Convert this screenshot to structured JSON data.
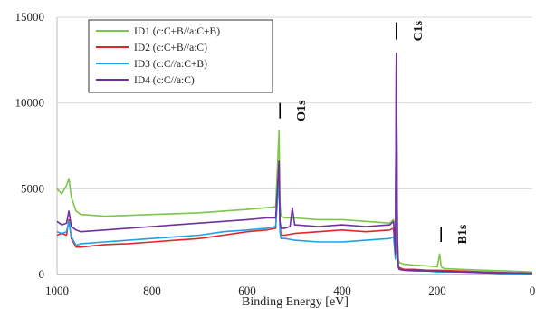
{
  "chart_data": {
    "type": "line",
    "title": "",
    "xlabel": "Binding Energy [eV]",
    "ylabel": "",
    "x_reversed": true,
    "xlim": [
      0,
      1000
    ],
    "ylim": [
      0,
      15000
    ],
    "x_ticks": [
      1000,
      800,
      600,
      400,
      200,
      0
    ],
    "x_tick_labels": [
      "1000",
      "800",
      "600",
      "400",
      "200",
      "0"
    ],
    "y_ticks": [
      0,
      5000,
      10000,
      15000
    ],
    "y_tick_labels": [
      "0",
      "5000",
      "10000",
      "15000"
    ],
    "grid": "horizontal",
    "legend_position": "top-left",
    "series": [
      {
        "name": "ID1 (c:C+B//a:C+B)",
        "color": "#7dc64a",
        "x": [
          1000,
          990,
          980,
          975,
          970,
          960,
          950,
          900,
          850,
          800,
          750,
          700,
          650,
          600,
          560,
          540,
          533,
          531,
          529,
          520,
          500,
          450,
          400,
          350,
          300,
          292,
          288,
          286,
          284,
          282,
          280,
          270,
          250,
          220,
          200,
          195,
          192,
          190,
          185,
          150,
          100,
          50,
          0
        ],
        "y": [
          5000,
          4700,
          5200,
          5600,
          4500,
          3700,
          3500,
          3400,
          3450,
          3500,
          3550,
          3600,
          3700,
          3800,
          3900,
          3950,
          8400,
          4200,
          3400,
          3300,
          3300,
          3200,
          3200,
          3100,
          3000,
          3200,
          1300,
          12900,
          2500,
          900,
          700,
          600,
          550,
          500,
          450,
          1200,
          500,
          400,
          350,
          300,
          250,
          200,
          150
        ]
      },
      {
        "name": "ID2 (c:C+B//a:C)",
        "color": "#e0262b",
        "x": [
          1000,
          990,
          980,
          975,
          970,
          960,
          950,
          900,
          850,
          800,
          750,
          700,
          650,
          600,
          560,
          540,
          533,
          531,
          529,
          520,
          500,
          450,
          400,
          350,
          300,
          292,
          288,
          286,
          284,
          282,
          280,
          270,
          250,
          220,
          200,
          150,
          100,
          50,
          0
        ],
        "y": [
          2300,
          2400,
          2300,
          3200,
          2100,
          1600,
          1600,
          1750,
          1800,
          1900,
          2000,
          2100,
          2300,
          2500,
          2600,
          2700,
          6600,
          2900,
          2300,
          2300,
          2400,
          2500,
          2600,
          2500,
          2600,
          2700,
          1000,
          12800,
          2000,
          600,
          400,
          300,
          300,
          250,
          250,
          200,
          150,
          100,
          50
        ]
      },
      {
        "name": "ID3 (c:C//a:C+B)",
        "color": "#1aa3e8",
        "x": [
          1000,
          990,
          980,
          975,
          970,
          960,
          950,
          900,
          850,
          800,
          750,
          700,
          650,
          600,
          560,
          540,
          533,
          531,
          529,
          520,
          500,
          450,
          400,
          350,
          300,
          292,
          288,
          286,
          284,
          282,
          280,
          270,
          250,
          220,
          200,
          150,
          100,
          50,
          0
        ],
        "y": [
          2500,
          2400,
          2500,
          3100,
          2200,
          1700,
          1800,
          1900,
          2000,
          2100,
          2200,
          2300,
          2500,
          2600,
          2700,
          2800,
          5700,
          2500,
          2100,
          2100,
          2000,
          1900,
          1900,
          2000,
          2100,
          2200,
          900,
          12700,
          2000,
          400,
          300,
          250,
          200,
          200,
          150,
          150,
          100,
          50,
          50
        ]
      },
      {
        "name": "ID4 (c:C//a:C)",
        "color": "#7030a0",
        "x": [
          1000,
          990,
          980,
          975,
          970,
          960,
          950,
          900,
          850,
          800,
          750,
          700,
          650,
          600,
          560,
          540,
          533,
          531,
          529,
          520,
          510,
          505,
          500,
          450,
          400,
          350,
          300,
          292,
          288,
          286,
          284,
          282,
          280,
          270,
          250,
          220,
          200,
          150,
          100,
          50,
          0
        ],
        "y": [
          3100,
          2900,
          3000,
          3700,
          2800,
          2600,
          2500,
          2600,
          2700,
          2800,
          2900,
          3000,
          3100,
          3200,
          3300,
          3300,
          6600,
          3100,
          2700,
          2700,
          2800,
          3900,
          2900,
          2800,
          2900,
          2800,
          2900,
          3100,
          1200,
          12900,
          2200,
          500,
          300,
          250,
          250,
          200,
          200,
          150,
          100,
          100,
          80
        ]
      }
    ],
    "annotations": [
      {
        "text": "O1s",
        "x": 531,
        "marker_y": [
          9100,
          10000
        ],
        "orientation": "vertical"
      },
      {
        "text": "C1s",
        "x": 286,
        "marker_y": [
          13700,
          14700
        ],
        "orientation": "vertical"
      },
      {
        "text": "B1s",
        "x": 192,
        "marker_y": [
          1900,
          2800
        ],
        "orientation": "vertical"
      }
    ]
  }
}
